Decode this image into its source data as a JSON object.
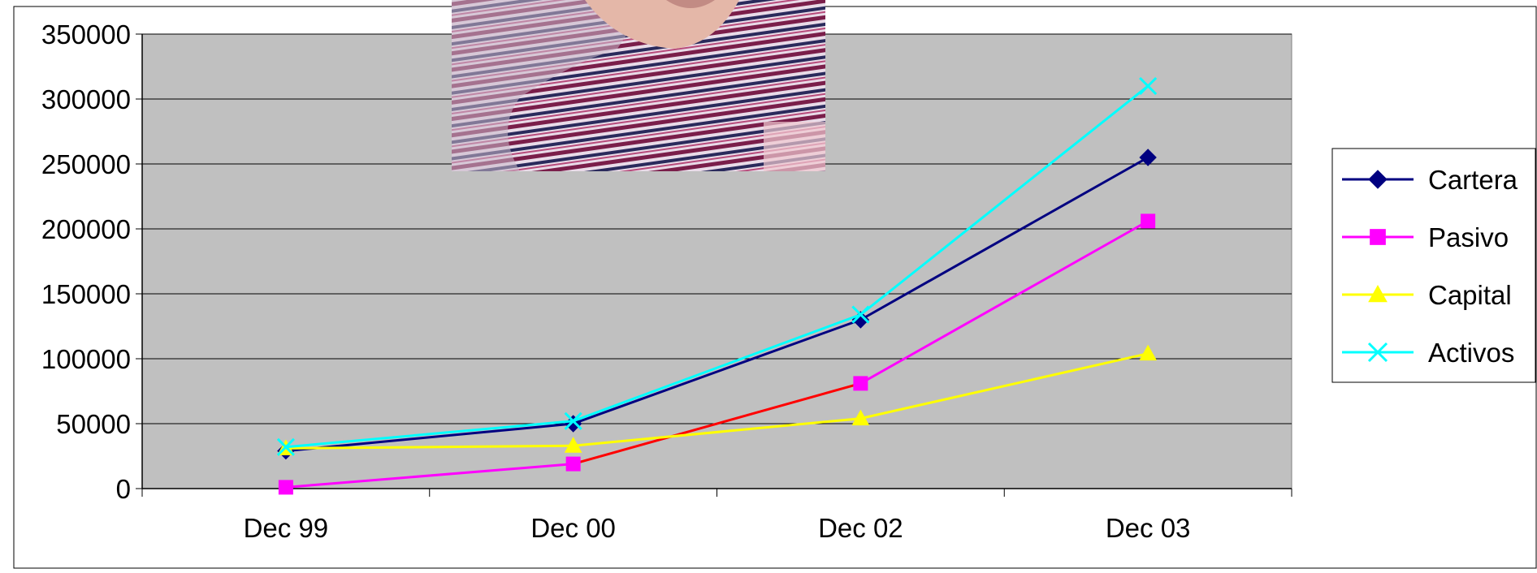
{
  "chart_data": {
    "type": "line",
    "categories": [
      "Dec 99",
      "Dec 00",
      "Dec 02",
      "Dec 03"
    ],
    "ylim": [
      0,
      350000
    ],
    "yticks": [
      0,
      50000,
      100000,
      150000,
      200000,
      250000,
      300000,
      350000
    ],
    "grid": true,
    "legend_position": "right",
    "plot_background": "#C0C0C0",
    "series": [
      {
        "name": "Cartera",
        "values": [
          29000,
          50000,
          130000,
          255000
        ],
        "color": "#000080",
        "marker": "diamond"
      },
      {
        "name": "Pasivo",
        "values": [
          1000,
          19000,
          81000,
          206000
        ],
        "color": "#FF00FF",
        "segment_colors": [
          "#FF00FF",
          "#FF0000",
          "#FF00FF"
        ],
        "marker": "square"
      },
      {
        "name": "Capital",
        "values": [
          31000,
          33000,
          54000,
          104000
        ],
        "color": "#FFFF00",
        "marker": "triangle"
      },
      {
        "name": "Activos",
        "values": [
          32000,
          52000,
          134000,
          310000
        ],
        "color": "#00FFFF",
        "marker": "x"
      }
    ]
  },
  "overlay_photo": {
    "icon": "photo-striped-shirt"
  }
}
